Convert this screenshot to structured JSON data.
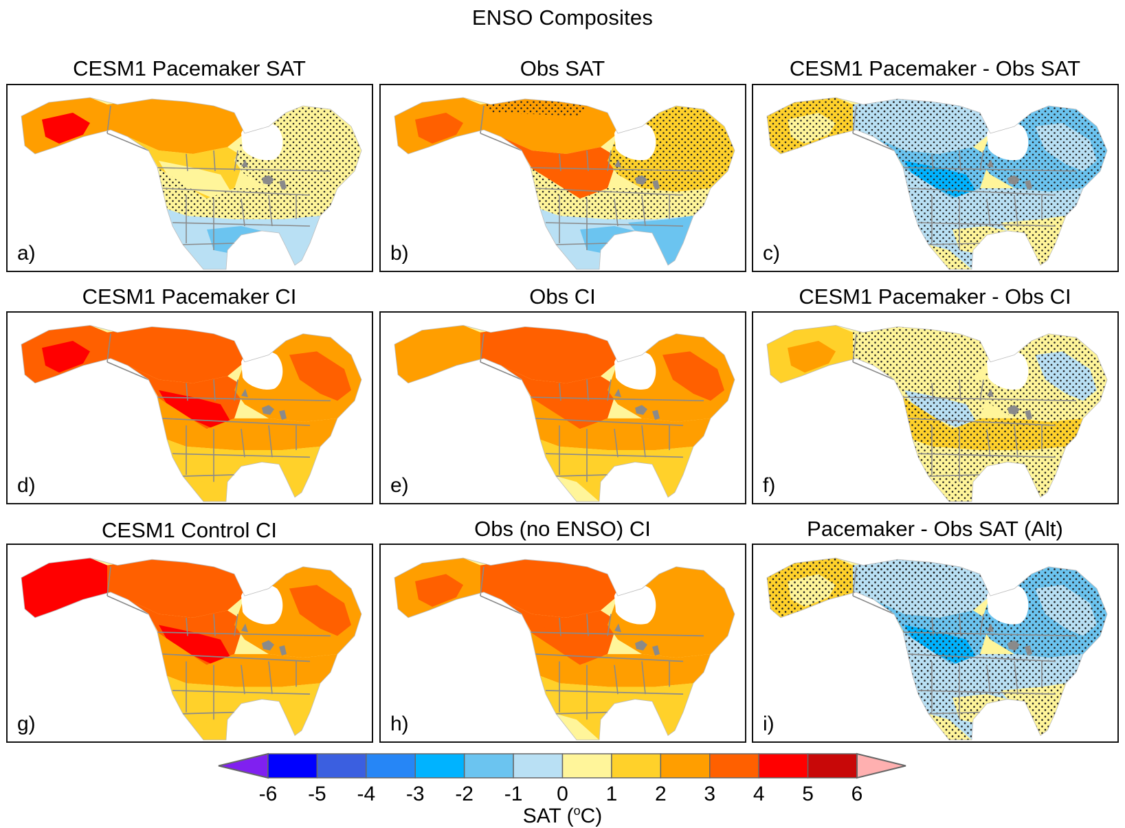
{
  "chart_data": {
    "type": "heatmap",
    "title": "ENSO Composites",
    "variable": "SAT",
    "units": "°C",
    "colorbar": {
      "label": "SAT (°C)",
      "levels": [
        -6,
        -5,
        -4,
        -3,
        -2,
        -1,
        0,
        1,
        2,
        3,
        4,
        5,
        6
      ],
      "tick_labels": [
        "-6",
        "-5",
        "-4",
        "-3",
        "-2",
        "-1",
        "0",
        "1",
        "2",
        "3",
        "4",
        "5",
        "6"
      ],
      "colors": [
        "#0000ff",
        "#3b5fe0",
        "#2686f6",
        "#00b3ff",
        "#6bc4f0",
        "#b9e0f4",
        "#fff59a",
        "#ffd12a",
        "#ff9e00",
        "#ff6000",
        "#ff0000",
        "#c80808"
      ],
      "under_color": "#8020f0",
      "over_color": "#ffb0b0",
      "orientation": "horizontal",
      "position": "bottom"
    },
    "panels": [
      {
        "id": "a",
        "label": "a)",
        "title": "CESM1 Pacemaker SAT",
        "stippled": true,
        "pattern": "Warm Alaska/NW Canada (+3 to +5), +1 to +2 across central/eastern Canada, 0 to +1 over northern US, -1 to -2 over southern US/Mexico; stippling across northern US band"
      },
      {
        "id": "b",
        "label": "b)",
        "title": "Obs SAT",
        "stippled": true,
        "pattern": "+3 to +4 core over western Canada/Prairies, +2 to +3 broad Canada, 0 to +1 over northern US, -1 to -2 over southern US; stippling over eastern Canada and US band"
      },
      {
        "id": "c",
        "label": "c)",
        "title": "CESM1 Pacemaker - Obs SAT",
        "stippled": true,
        "pattern": "Mostly negative (-1 to -3) over central Canada and northern US, 0 to +2 over Alaska/Arctic and southeastern US; stippling nearly everywhere"
      },
      {
        "id": "d",
        "label": "d)",
        "title": "CESM1 Pacemaker CI",
        "stippled": false,
        "pattern": "+4 to +5 over Alaska, +3 to +4 band from NW Canada to Great Lakes, +2 to +3 elsewhere, +1 to +2 over southern US/Mexico"
      },
      {
        "id": "e",
        "label": "e)",
        "title": "Obs CI",
        "stippled": false,
        "pattern": "+3 to +4 band from Yukon to Dakotas and Labrador, +2 to +3 broadly, +1 to +2 over US south, 0 to +1 over Mexico"
      },
      {
        "id": "f",
        "label": "f)",
        "title": "CESM1 Pacemaker - Obs CI",
        "stippled": true,
        "pattern": "Mostly 0 to +1 with +1 to +2 patches over Alaska and Great Lakes, -1 to 0 over Quebec/Labrador and parts of Prairies; stippling widespread"
      },
      {
        "id": "g",
        "label": "g)",
        "title": "CESM1 Control CI",
        "stippled": false,
        "pattern": "+4 to +5 over Alaska and Prairies core, +3 to +4 broad band NW Canada to Great Lakes, +2 to +3 elsewhere, +1 to +2 southern US/Mexico"
      },
      {
        "id": "h",
        "label": "h)",
        "title": "Obs (no ENSO) CI",
        "stippled": false,
        "pattern": "+3 to +4 band Alaska to Dakotas, +2 to +3 broadly, +1 to +2 southern US, 0 to +1 Mexico"
      },
      {
        "id": "i",
        "label": "i)",
        "title": "Pacemaker - Obs SAT (Alt)",
        "stippled": true,
        "pattern": "Negative (-1 to -3) over central Canada/northern US, 0 to +2 over Alaska, Arctic and southeastern US; stippling nearly everywhere"
      }
    ]
  }
}
